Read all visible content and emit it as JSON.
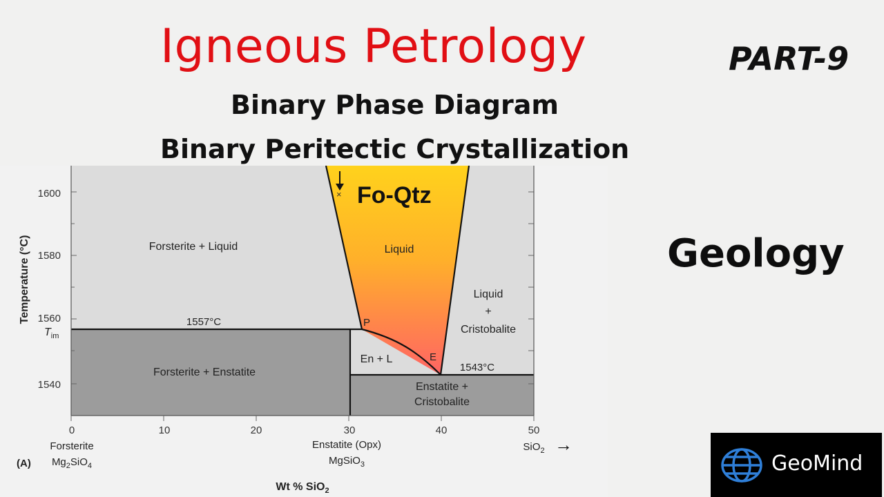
{
  "header": {
    "title": "Igneous Petrology",
    "part": "PART-9",
    "subtitle_1": "Binary Phase Diagram",
    "subtitle_2": "Binary Peritectic Crystallization"
  },
  "side_label": "Geology",
  "logo": {
    "icon": "globe-icon",
    "text": "GeoMind"
  },
  "colors": {
    "title_red": "#e10f14",
    "liquid_gradient_top": "#ffd21c",
    "liquid_gradient_bottom": "#ff6a6a",
    "region_light": "#dcdcdc",
    "region_dark": "#9a9a9a"
  },
  "diagram": {
    "system_label": "Fo-Qtz",
    "panel_label": "(A)",
    "x_axis": {
      "title_prefix": "Wt % SiO",
      "title_sub": "2",
      "min": 0,
      "max": 50,
      "ticks": [
        "0",
        "10",
        "20",
        "30",
        "40",
        "50"
      ],
      "end_label_prefix": "SiO",
      "end_label_sub": "2",
      "arrow": "→"
    },
    "y_axis": {
      "title": "Temperature (°C)",
      "min": 1532,
      "max": 1606,
      "ticks": [
        "1540",
        "1560",
        "1580",
        "1600"
      ],
      "special_tick_main": "T",
      "special_tick_sub": "im"
    },
    "endmembers": {
      "forsterite_name": "Forsterite",
      "forsterite_formula_main": "Mg",
      "forsterite_formula_sub1": "2",
      "forsterite_formula_mid": "SiO",
      "forsterite_formula_sub2": "4",
      "enstatite_name": "Enstatite (Opx)",
      "enstatite_formula_main": "MgSiO",
      "enstatite_formula_sub": "3"
    },
    "regions": {
      "fo_liq": "Forsterite + Liquid",
      "liquid": "Liquid",
      "liq_cr_1": "Liquid",
      "liq_cr_2": "+",
      "liq_cr_3": "Cristobalite",
      "fo_en": "Forsterite + Enstatite",
      "en_l": "En + L",
      "en_cr_1": "Enstatite +",
      "en_cr_2": "Cristobalite"
    },
    "points": {
      "peritectic": "P",
      "eutectic": "E",
      "bulk": "×"
    },
    "isotherms": {
      "peritectic": {
        "label": "1557°C",
        "value": 1557
      },
      "eutectic": {
        "label": "1543°C",
        "value": 1543
      }
    },
    "compositions": {
      "enstatite": 30,
      "peritectic": 31.5,
      "eutectic": 40
    }
  }
}
